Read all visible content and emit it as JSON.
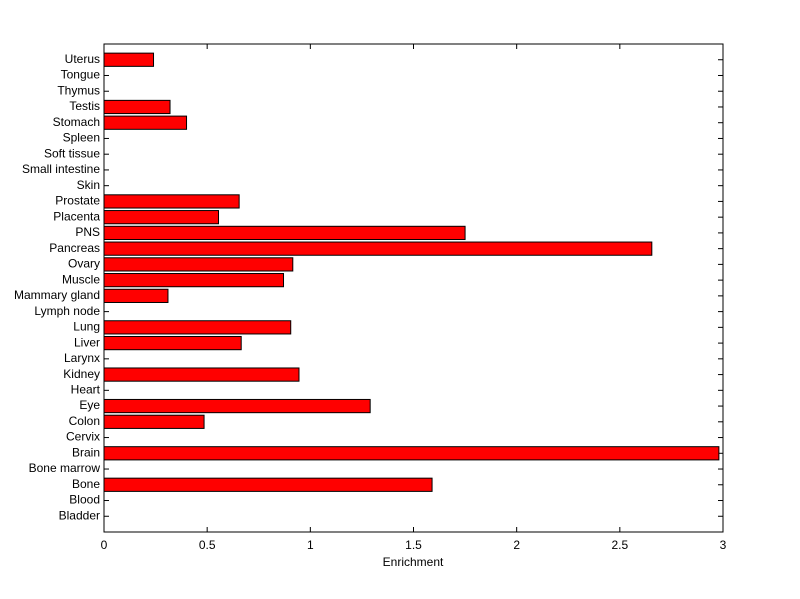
{
  "chart_data": {
    "type": "barh",
    "xlabel": "Enrichment",
    "categories": [
      "Bladder",
      "Blood",
      "Bone",
      "Bone marrow",
      "Brain",
      "Cervix",
      "Colon",
      "Eye",
      "Heart",
      "Kidney",
      "Larynx",
      "Liver",
      "Lung",
      "Lymph node",
      "Mammary gland",
      "Muscle",
      "Ovary",
      "Pancreas",
      "PNS",
      "Placenta",
      "Prostate",
      "Skin",
      "Small intestine",
      "Soft tissue",
      "Spleen",
      "Stomach",
      "Testis",
      "Thymus",
      "Tongue",
      "Uterus"
    ],
    "values": [
      0,
      0,
      1.59,
      0,
      2.98,
      0,
      0.485,
      1.29,
      0,
      0.945,
      0,
      0.665,
      0.905,
      0,
      0.31,
      0.87,
      0.915,
      2.655,
      1.75,
      0.555,
      0.655,
      0,
      0,
      0,
      0,
      0.4,
      0.32,
      0,
      0,
      0.24
    ],
    "color": "#ff0000",
    "xlim": [
      0,
      3
    ],
    "xticks": [
      0,
      0.5,
      1,
      1.5,
      2,
      2.5,
      3
    ],
    "grid": false
  }
}
